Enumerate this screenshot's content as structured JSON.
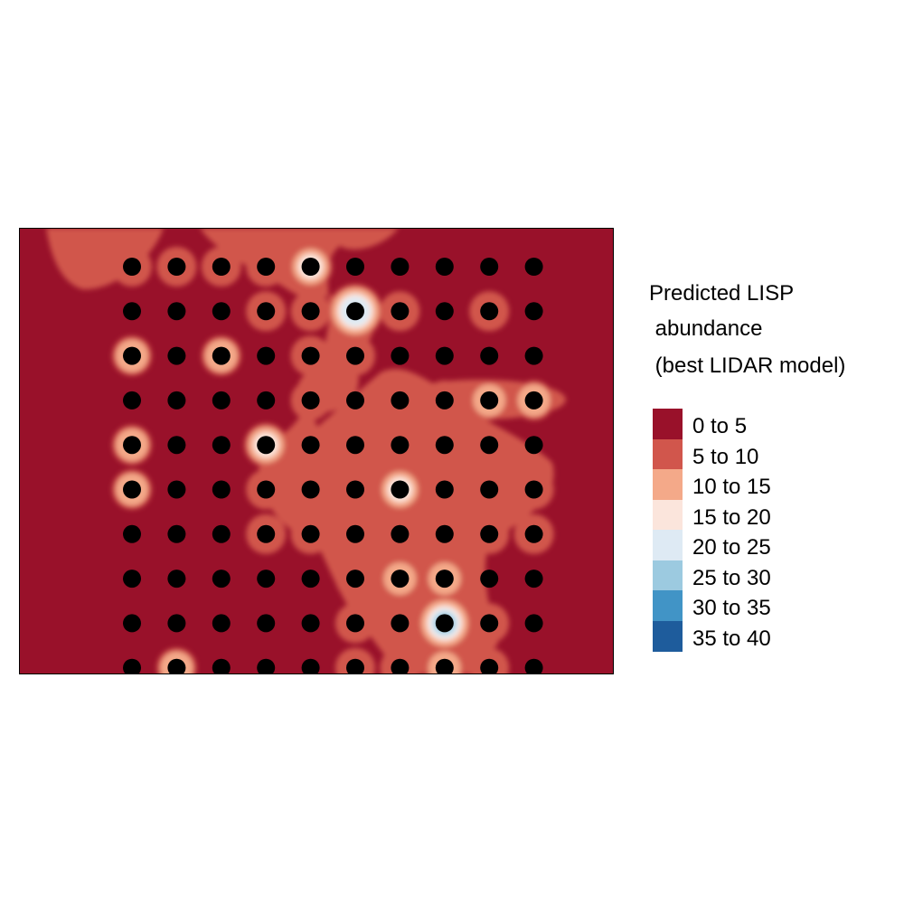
{
  "chart_data": {
    "type": "heatmap",
    "title": "",
    "xlabel": "",
    "ylabel": "",
    "legend": {
      "title_lines": [
        "Predicted LISP",
        " abundance",
        " (best LIDAR model)"
      ],
      "placement": "right",
      "bins": [
        {
          "label": "0 to 5",
          "color": "#99112a"
        },
        {
          "label": "5 to 10",
          "color": "#d1564c"
        },
        {
          "label": "10 to 15",
          "color": "#f4a989"
        },
        {
          "label": "15 to 20",
          "color": "#fbe5dc"
        },
        {
          "label": "20 to 25",
          "color": "#deeaf4"
        },
        {
          "label": "25 to 30",
          "color": "#9ccae0"
        },
        {
          "label": "30 to 35",
          "color": "#4194c6"
        },
        {
          "label": "35 to 40",
          "color": "#1e5c9c"
        }
      ]
    },
    "grid": {
      "columns": 10,
      "rows": 10,
      "points_shown": true,
      "predicted_bin_by_point": [
        [
          1,
          1,
          1,
          1,
          3,
          0,
          0,
          0,
          0,
          0
        ],
        [
          0,
          0,
          0,
          1,
          1,
          4,
          1,
          0,
          1,
          0
        ],
        [
          2,
          0,
          2,
          0,
          1,
          1,
          0,
          0,
          0,
          0
        ],
        [
          0,
          0,
          0,
          0,
          1,
          0,
          1,
          1,
          2,
          2
        ],
        [
          2,
          0,
          0,
          3,
          1,
          0,
          1,
          1,
          1,
          0
        ],
        [
          2,
          0,
          0,
          1,
          1,
          1,
          3,
          1,
          1,
          1
        ],
        [
          0,
          0,
          0,
          1,
          1,
          0,
          1,
          1,
          1,
          1
        ],
        [
          0,
          0,
          0,
          0,
          0,
          1,
          2,
          2,
          0,
          0
        ],
        [
          0,
          0,
          0,
          0,
          0,
          1,
          1,
          5,
          1,
          0
        ],
        [
          0,
          2,
          0,
          0,
          0,
          1,
          1,
          2,
          1,
          0
        ]
      ]
    }
  }
}
